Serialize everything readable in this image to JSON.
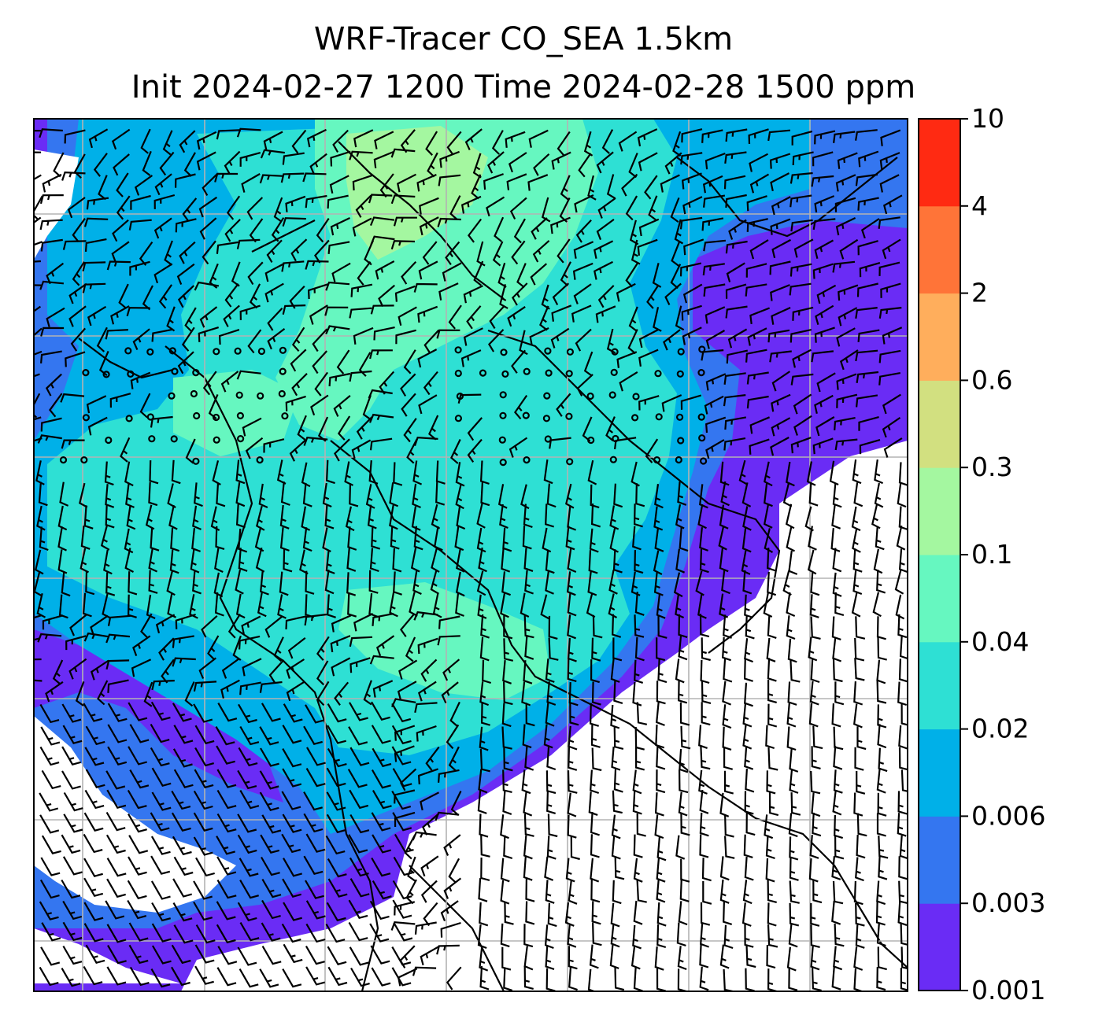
{
  "title": {
    "line1": "WRF-Tracer CO_SEA 1.5km",
    "line2": "Init 2024-02-27 1200 Time 2024-02-28 1500 ppm"
  },
  "colorbar": {
    "levels": [
      "0.001",
      "0.003",
      "0.006",
      "0.02",
      "0.04",
      "0.1",
      "0.3",
      "0.6",
      "2",
      "4",
      "10"
    ],
    "colors": [
      "#6a2cf5",
      "#3476f0",
      "#00b0e8",
      "#2ee0d4",
      "#66f7c0",
      "#a4f7a0",
      "#d2e080",
      "#ffae5c",
      "#ff7438",
      "#ff2a12"
    ]
  },
  "map": {
    "background": "#ffffff",
    "gridlines": true,
    "gridline_color": "#b3b3b3",
    "coastline_color": "#000000",
    "wind_barbs": true
  }
}
